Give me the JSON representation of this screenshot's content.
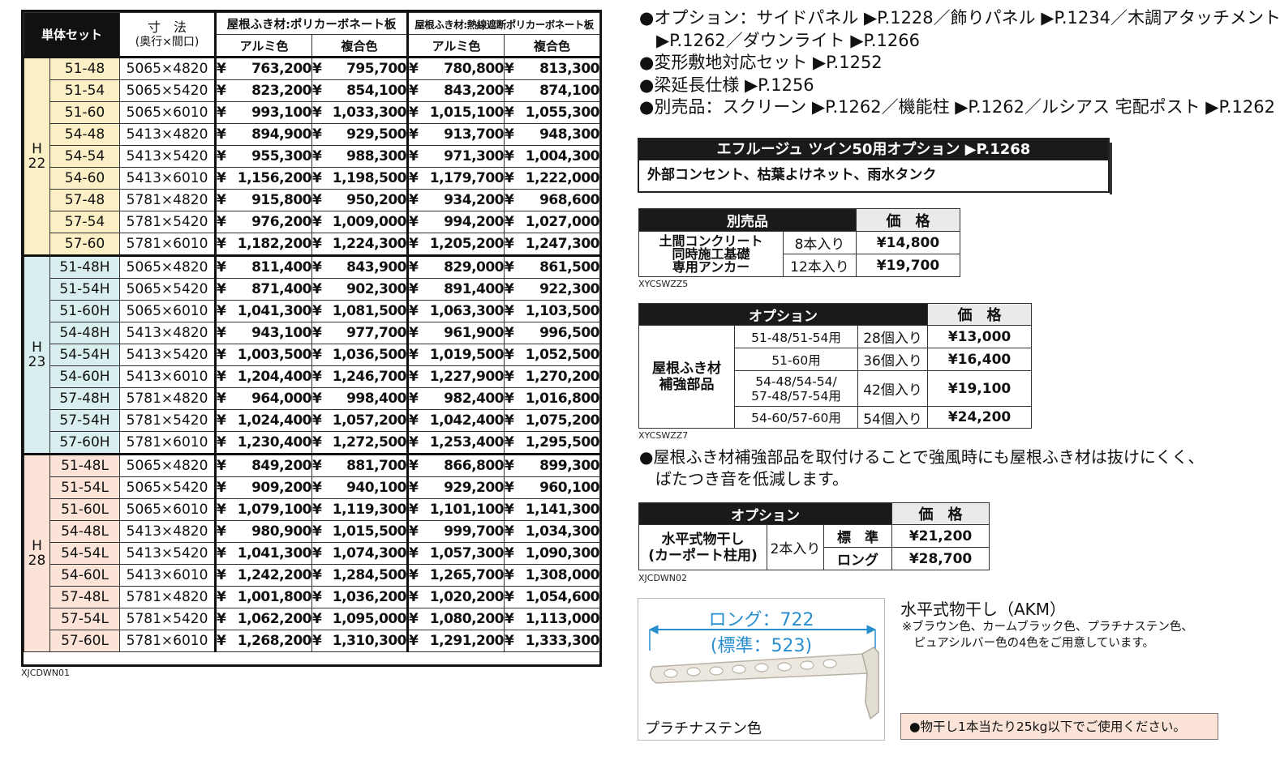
{
  "main_table": {
    "header": {
      "set_label": "単体セット",
      "dim_label_1": "寸　法",
      "dim_label_2": "(奥行×間口)",
      "group_1": "屋根ふき材:ポリカーボネート板",
      "group_2": "屋根ふき材:熱線遮断ポリカーボネート板",
      "alu": "アルミ色",
      "combo": "複合色"
    },
    "groups": [
      {
        "label_1": "H",
        "label_2": "22",
        "rows": [
          {
            "code": "51-48",
            "dim": "5065×4820",
            "p1": "763,200",
            "p2": "795,700",
            "p3": "780,800",
            "p4": "813,300"
          },
          {
            "code": "51-54",
            "dim": "5065×5420",
            "p1": "823,200",
            "p2": "854,100",
            "p3": "843,200",
            "p4": "874,100"
          },
          {
            "code": "51-60",
            "dim": "5065×6010",
            "p1": "993,100",
            "p2": "1,033,300",
            "p3": "1,015,100",
            "p4": "1,055,300"
          },
          {
            "code": "54-48",
            "dim": "5413×4820",
            "p1": "894,900",
            "p2": "929,500",
            "p3": "913,700",
            "p4": "948,300"
          },
          {
            "code": "54-54",
            "dim": "5413×5420",
            "p1": "955,300",
            "p2": "988,300",
            "p3": "971,300",
            "p4": "1,004,300"
          },
          {
            "code": "54-60",
            "dim": "5413×6010",
            "p1": "1,156,200",
            "p2": "1,198,500",
            "p3": "1,179,700",
            "p4": "1,222,000"
          },
          {
            "code": "57-48",
            "dim": "5781×4820",
            "p1": "915,800",
            "p2": "950,200",
            "p3": "934,200",
            "p4": "968,600"
          },
          {
            "code": "57-54",
            "dim": "5781×5420",
            "p1": "976,200",
            "p2": "1,009,000",
            "p3": "994,200",
            "p4": "1,027,000"
          },
          {
            "code": "57-60",
            "dim": "5781×6010",
            "p1": "1,182,200",
            "p2": "1,224,300",
            "p3": "1,205,200",
            "p4": "1,247,300"
          }
        ]
      },
      {
        "label_1": "H",
        "label_2": "23",
        "rows": [
          {
            "code": "51-48H",
            "dim": "5065×4820",
            "p1": "811,400",
            "p2": "843,900",
            "p3": "829,000",
            "p4": "861,500"
          },
          {
            "code": "51-54H",
            "dim": "5065×5420",
            "p1": "871,400",
            "p2": "902,300",
            "p3": "891,400",
            "p4": "922,300"
          },
          {
            "code": "51-60H",
            "dim": "5065×6010",
            "p1": "1,041,300",
            "p2": "1,081,500",
            "p3": "1,063,300",
            "p4": "1,103,500"
          },
          {
            "code": "54-48H",
            "dim": "5413×4820",
            "p1": "943,100",
            "p2": "977,700",
            "p3": "961,900",
            "p4": "996,500"
          },
          {
            "code": "54-54H",
            "dim": "5413×5420",
            "p1": "1,003,500",
            "p2": "1,036,500",
            "p3": "1,019,500",
            "p4": "1,052,500"
          },
          {
            "code": "54-60H",
            "dim": "5413×6010",
            "p1": "1,204,400",
            "p2": "1,246,700",
            "p3": "1,227,900",
            "p4": "1,270,200"
          },
          {
            "code": "57-48H",
            "dim": "5781×4820",
            "p1": "964,000",
            "p2": "998,400",
            "p3": "982,400",
            "p4": "1,016,800"
          },
          {
            "code": "57-54H",
            "dim": "5781×5420",
            "p1": "1,024,400",
            "p2": "1,057,200",
            "p3": "1,042,400",
            "p4": "1,075,200"
          },
          {
            "code": "57-60H",
            "dim": "5781×6010",
            "p1": "1,230,400",
            "p2": "1,272,500",
            "p3": "1,253,400",
            "p4": "1,295,500"
          }
        ]
      },
      {
        "label_1": "H",
        "label_2": "28",
        "rows": [
          {
            "code": "51-48L",
            "dim": "5065×4820",
            "p1": "849,200",
            "p2": "881,700",
            "p3": "866,800",
            "p4": "899,300"
          },
          {
            "code": "51-54L",
            "dim": "5065×5420",
            "p1": "909,200",
            "p2": "940,100",
            "p3": "929,200",
            "p4": "960,100"
          },
          {
            "code": "51-60L",
            "dim": "5065×6010",
            "p1": "1,079,100",
            "p2": "1,119,300",
            "p3": "1,101,100",
            "p4": "1,141,300"
          },
          {
            "code": "54-48L",
            "dim": "5413×4820",
            "p1": "980,900",
            "p2": "1,015,500",
            "p3": "999,700",
            "p4": "1,034,300"
          },
          {
            "code": "54-54L",
            "dim": "5413×5420",
            "p1": "1,041,300",
            "p2": "1,074,300",
            "p3": "1,057,300",
            "p4": "1,090,300"
          },
          {
            "code": "54-60L",
            "dim": "5413×6010",
            "p1": "1,242,200",
            "p2": "1,284,500",
            "p3": "1,265,700",
            "p4": "1,308,000"
          },
          {
            "code": "57-48L",
            "dim": "5781×4820",
            "p1": "1,001,800",
            "p2": "1,036,200",
            "p3": "1,020,200",
            "p4": "1,054,600"
          },
          {
            "code": "57-54L",
            "dim": "5781×5420",
            "p1": "1,062,200",
            "p2": "1,095,000",
            "p3": "1,080,200",
            "p4": "1,113,000"
          },
          {
            "code": "57-60L",
            "dim": "5781×6010",
            "p1": "1,268,200",
            "p2": "1,310,300",
            "p3": "1,291,200",
            "p4": "1,333,300"
          }
        ]
      }
    ],
    "yen": "¥",
    "product_code": "XJCDWN01"
  },
  "options_list": [
    {
      "text": "●オプション：サイドパネル ▶P.1228／飾りパネル ▶P.1234／木調アタッチメント"
    },
    {
      "text": "　▶P.1262／ダウンライト ▶P.1266"
    },
    {
      "text": "●変形敷地対応セット ▶P.1252"
    },
    {
      "text": "●梁延長仕様 ▶P.1256"
    },
    {
      "text": "●別売品：スクリーン ▶P.1262／機能柱 ▶P.1262／ルシアス 宅配ポスト ▶P.1262"
    }
  ],
  "twin_box": {
    "title": "エフルージュ ツイン50用オプション ▶P.1268",
    "body": "外部コンセント、枯葉よけネット、雨水タンク"
  },
  "anchor_table": {
    "h_item": "別売品",
    "h_price": "価　格",
    "name": [
      "土間コンクリート",
      "同時施工基礎",
      "専用アンカー"
    ],
    "rows": [
      {
        "qty": "8本入り",
        "price": "¥14,800"
      },
      {
        "qty": "12本入り",
        "price": "¥19,700"
      }
    ],
    "code": "XYCSWZZ5"
  },
  "reinforce_table": {
    "h_item": "オプション",
    "h_price": "価　格",
    "name": [
      "屋根ふき材",
      "補強部品"
    ],
    "rows": [
      {
        "model": "51-48/51-54用",
        "qty": "28個入り",
        "price": "¥13,000"
      },
      {
        "model": "51-60用",
        "qty": "36個入り",
        "price": "¥16,400"
      },
      {
        "model_1": "54-48/54-54/",
        "model_2": "57-48/57-54用",
        "qty": "42個入り",
        "price": "¥19,100"
      },
      {
        "model": "54-60/57-60用",
        "qty": "54個入り",
        "price": "¥24,200"
      }
    ],
    "code": "XYCSWZZ7",
    "note_1": "●屋根ふき材補強部品を取付けることで強風時にも屋根ふき材は抜けにくく、",
    "note_2": "　ばたつき音を低減します。"
  },
  "dryer_table": {
    "h_item": "オプション",
    "h_price": "価　格",
    "name": [
      "水平式物干し",
      "(カーポート柱用)"
    ],
    "qty": "2本入り",
    "rows": [
      {
        "type": "標　準",
        "price": "¥21,200"
      },
      {
        "type": "ロング",
        "price": "¥28,700"
      }
    ],
    "code": "XJCDWN02"
  },
  "dryer_figure": {
    "long_label": "ロング：722",
    "std_label": "(標準：523)",
    "color_caption": "プラチナステン色",
    "accent": "#2a8fcf"
  },
  "dryer_info": {
    "title": "水平式物干し（AKM）",
    "note_1": "※ブラウン色、カームブラック色、プラチナステン色、",
    "note_2": "　ピュアシルバー色の4色をご用意しています。",
    "warning": "●物干し1本当たり25kg以下でご使用ください。"
  }
}
